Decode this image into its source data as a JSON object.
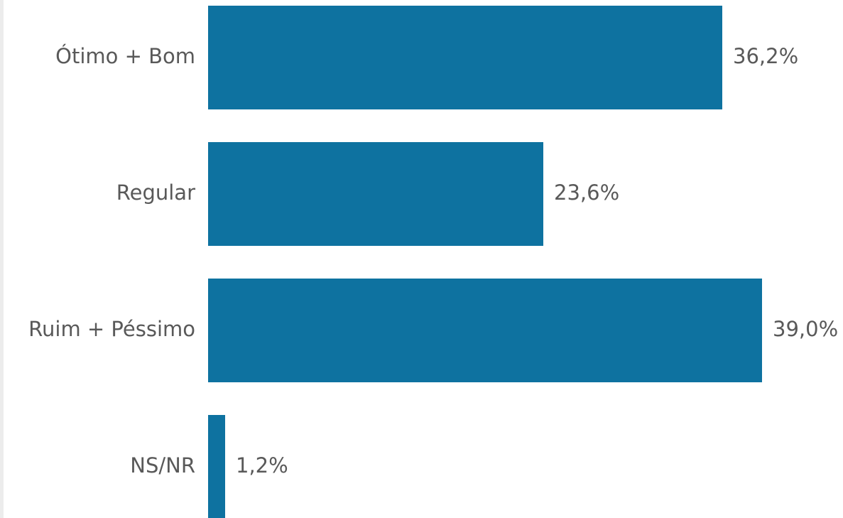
{
  "chart_data": {
    "type": "bar",
    "orientation": "horizontal",
    "categories": [
      "Ótimo + Bom",
      "Regular",
      "Ruim + Péssimo",
      "NS/NR"
    ],
    "values": [
      36.2,
      23.6,
      39.0,
      1.2
    ],
    "value_labels": [
      "36,2%",
      "23,6%",
      "39,0%",
      "1,2%"
    ],
    "color": "#0e72a0"
  }
}
